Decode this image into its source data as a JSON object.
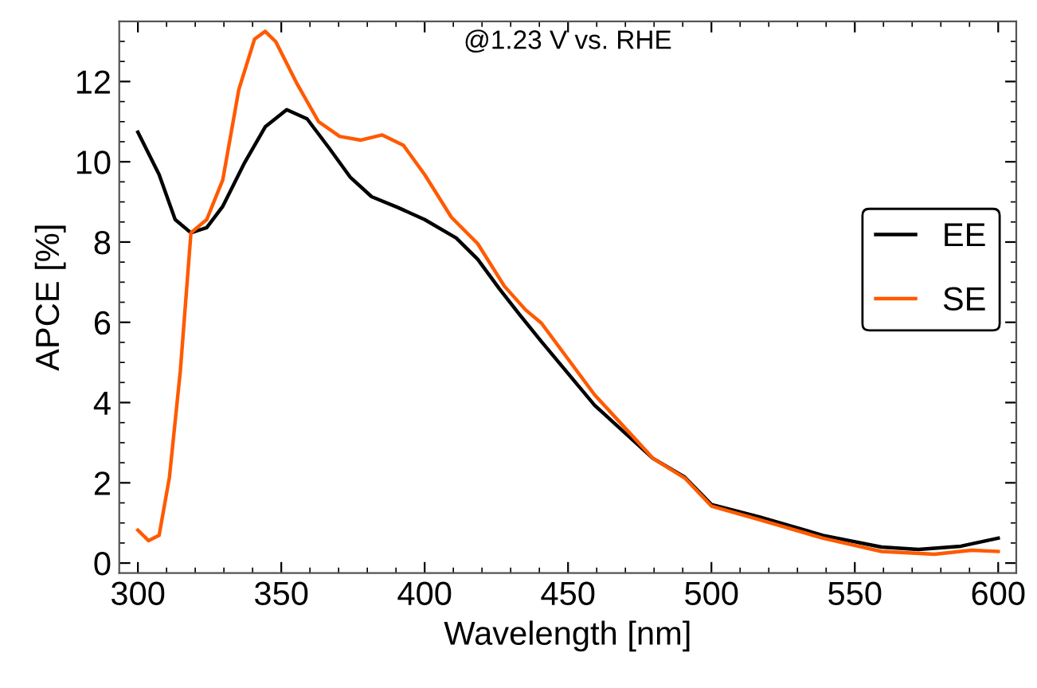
{
  "chart_data": {
    "type": "line",
    "xlabel": "Wavelength [nm]",
    "ylabel": "APCE [%]",
    "annotations": [
      "@1.23 V vs. RHE"
    ],
    "xlim": [
      293.5,
      606.3
    ],
    "ylim": [
      -0.25,
      13.5
    ],
    "xticks": [
      300,
      350,
      400,
      450,
      500,
      550,
      600
    ],
    "yticks": [
      0,
      2,
      4,
      6,
      8,
      10,
      12
    ],
    "grid": false,
    "legend": "right",
    "marker": "none",
    "line_style": "solid",
    "series": [
      {
        "name": "EE",
        "color": "#000000",
        "x": [
          300,
          307.4,
          313,
          318.5,
          324,
          329.6,
          337,
          344.4,
          351.9,
          359,
          366.7,
          374,
          381.5,
          390.7,
          400,
          411,
          418.5,
          426,
          433,
          440.7,
          459.3,
          479.6,
          490.7,
          500,
          516.7,
          538.9,
          559.3,
          572.2,
          587,
          600
        ],
        "values": [
          10.74,
          9.68,
          8.56,
          8.23,
          8.36,
          8.89,
          9.95,
          10.87,
          11.3,
          11.07,
          10.34,
          9.62,
          9.13,
          8.86,
          8.56,
          8.1,
          7.57,
          6.84,
          6.2,
          5.52,
          3.93,
          2.61,
          2.14,
          1.46,
          1.15,
          0.69,
          0.4,
          0.34,
          0.42,
          0.62
        ]
      },
      {
        "name": "SE",
        "color": "#ff5a00",
        "x": [
          300,
          303.7,
          307.4,
          311,
          314.8,
          318.5,
          324,
          329.6,
          335.2,
          340.7,
          344.4,
          348.1,
          355.6,
          363,
          370.4,
          377.8,
          385.2,
          392.6,
          400,
          409.3,
          418.5,
          427.8,
          435.2,
          440.7,
          459.3,
          479.6,
          490.7,
          500,
          516.7,
          538.9,
          559.3,
          577.8,
          590.7,
          600
        ],
        "values": [
          0.82,
          0.56,
          0.69,
          2.14,
          4.79,
          8.23,
          8.56,
          9.55,
          11.8,
          13.06,
          13.25,
          12.99,
          11.93,
          11.0,
          10.63,
          10.54,
          10.67,
          10.41,
          9.68,
          8.62,
          7.96,
          6.9,
          6.31,
          5.98,
          4.19,
          2.61,
          2.12,
          1.42,
          1.08,
          0.62,
          0.29,
          0.22,
          0.32,
          0.29
        ]
      }
    ]
  }
}
